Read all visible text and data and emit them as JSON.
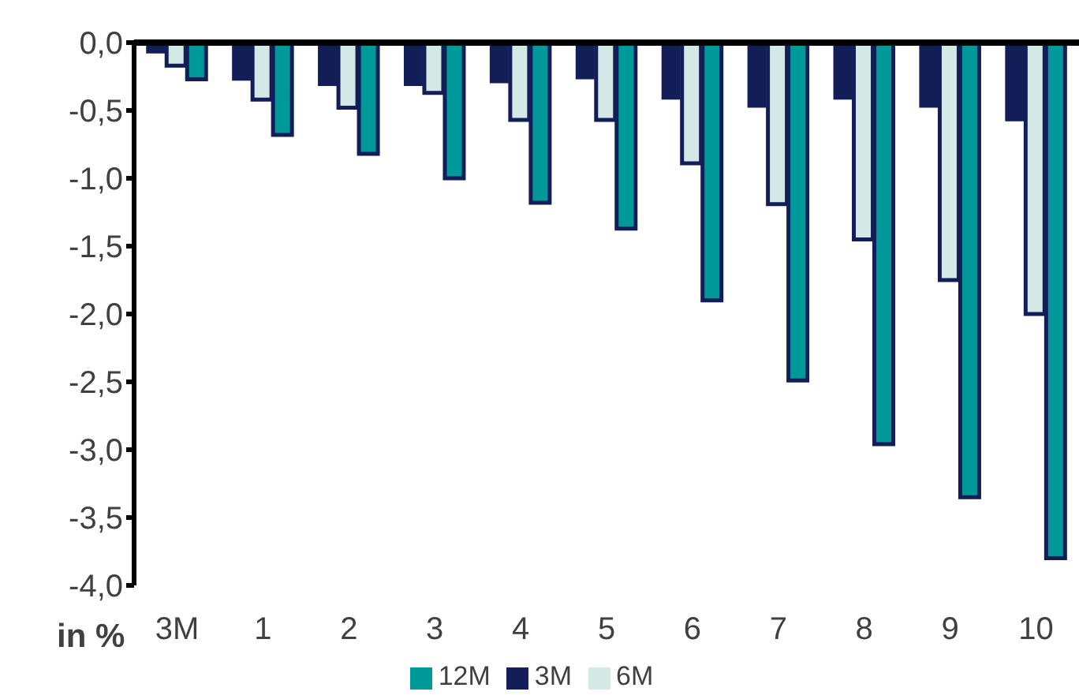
{
  "chart_data": {
    "type": "bar",
    "ylabel": "in %",
    "categories": [
      "3M",
      "1",
      "2",
      "3",
      "4",
      "5",
      "6",
      "7",
      "8",
      "9",
      "10"
    ],
    "series": [
      {
        "name": "3M",
        "color": "#131d57",
        "values": [
          -0.08,
          -0.28,
          -0.32,
          -0.32,
          -0.3,
          -0.27,
          -0.42,
          -0.48,
          -0.42,
          -0.48,
          -0.58
        ]
      },
      {
        "name": "6M",
        "color": "#d4e9e6",
        "values": [
          -0.17,
          -0.42,
          -0.48,
          -0.37,
          -0.57,
          -0.57,
          -0.89,
          -1.19,
          -1.45,
          -1.75,
          -2.0
        ]
      },
      {
        "name": "12M",
        "color": "#009999",
        "values": [
          -0.27,
          -0.68,
          -0.82,
          -1.0,
          -1.18,
          -1.37,
          -1.9,
          -2.49,
          -2.96,
          -3.35,
          -3.8
        ]
      }
    ],
    "ylim": [
      -4.0,
      0.0
    ],
    "yticks": [
      {
        "value": 0,
        "label": "0,0"
      },
      {
        "value": -0.5,
        "label": "-0,5"
      },
      {
        "value": -1,
        "label": "-1,0"
      },
      {
        "value": -1.5,
        "label": "-1,5"
      },
      {
        "value": -2,
        "label": "-2,0"
      },
      {
        "value": -2.5,
        "label": "-2,5"
      },
      {
        "value": -3,
        "label": "-3,0"
      },
      {
        "value": -3.5,
        "label": "-3,5"
      },
      {
        "value": -4,
        "label": "-4,0"
      }
    ],
    "grid": false,
    "legend": "bottom"
  }
}
